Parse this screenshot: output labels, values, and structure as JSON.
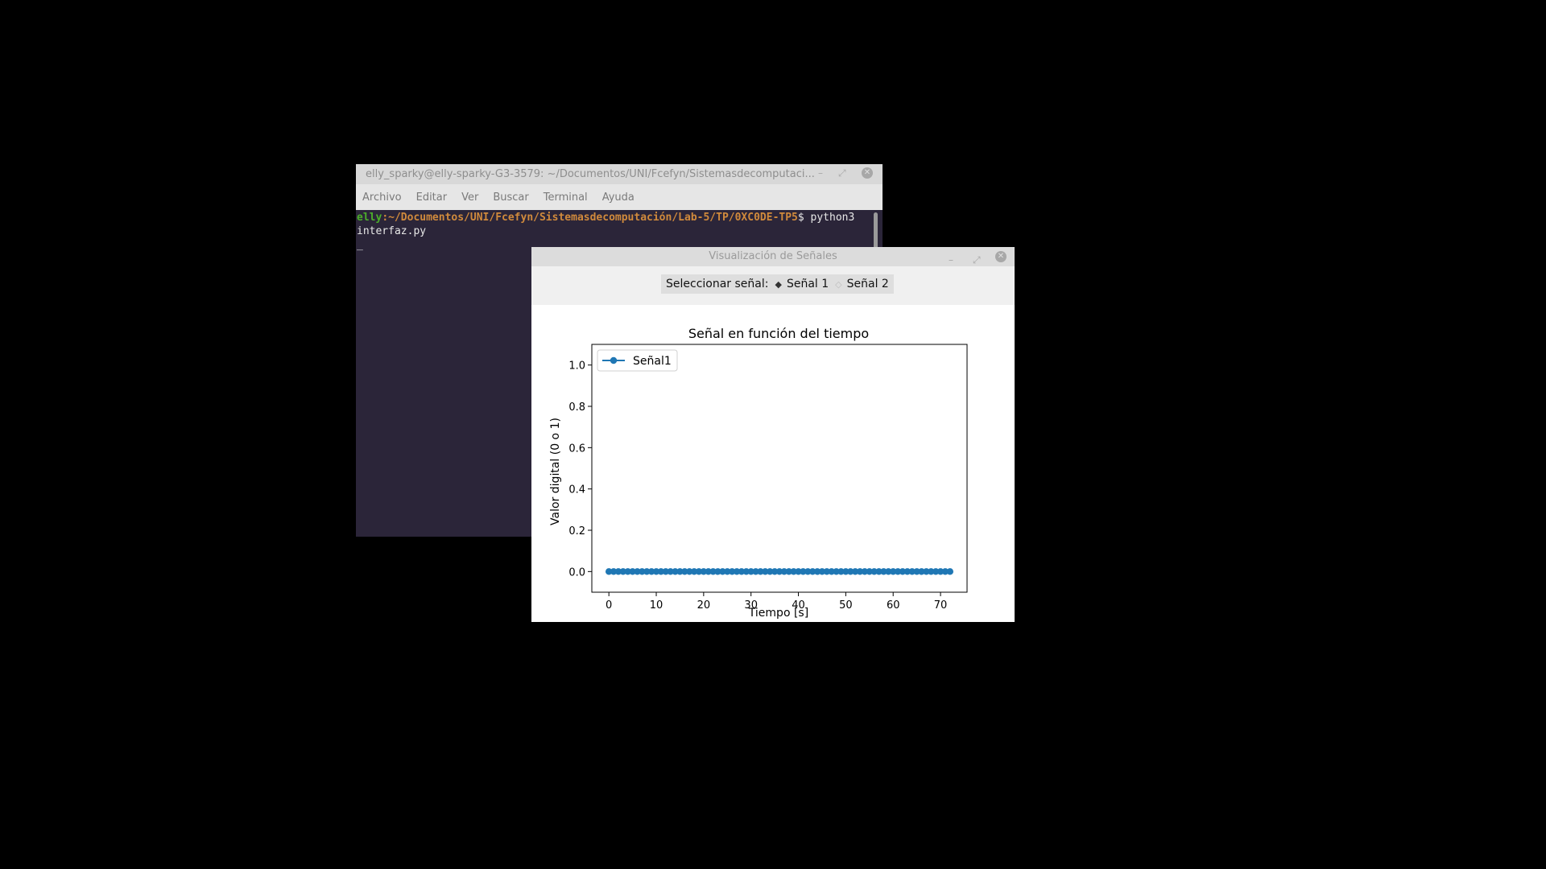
{
  "terminal": {
    "title": "elly_sparky@elly-sparky-G3-3579: ~/Documentos/UNI/Fcefyn/Sistemasdecomputaci...",
    "menu": [
      "Archivo",
      "Editar",
      "Ver",
      "Buscar",
      "Terminal",
      "Ayuda"
    ],
    "prompt_user": "elly",
    "prompt_path": ":~/Documentos/UNI/Fcefyn/Sistemasdecomputación/Lab-5/TP/0XC0DE-TP5",
    "command_part1": "$ python3",
    "command_part2": "interfaz.py",
    "cursor": "_"
  },
  "plot_window": {
    "title": "Visualización de Señales",
    "selector_label": "Seleccionar señal:",
    "options": [
      "Señal 1",
      "Señal 2"
    ],
    "selected_option": "Señal 1"
  },
  "chart_data": {
    "type": "line",
    "title": "Señal en función del tiempo",
    "xlabel": "Tiempo [s]",
    "ylabel": "Valor digital (0 o 1)",
    "xlim": [
      -3.6,
      75.6
    ],
    "ylim": [
      -0.1,
      1.1
    ],
    "xticks": [
      0,
      10,
      20,
      30,
      40,
      50,
      60,
      70
    ],
    "yticks": [
      0.0,
      0.2,
      0.4,
      0.6,
      0.8,
      1.0
    ],
    "ytick_labels": [
      "0.0",
      "0.2",
      "0.4",
      "0.6",
      "0.8",
      "1.0"
    ],
    "legend_position": "top-left",
    "grid": false,
    "series": [
      {
        "name": "Señal1",
        "color": "#1f77b4",
        "marker": "circle",
        "x_start": 0,
        "x_end": 72,
        "x_step": 1,
        "value": 0
      }
    ]
  }
}
